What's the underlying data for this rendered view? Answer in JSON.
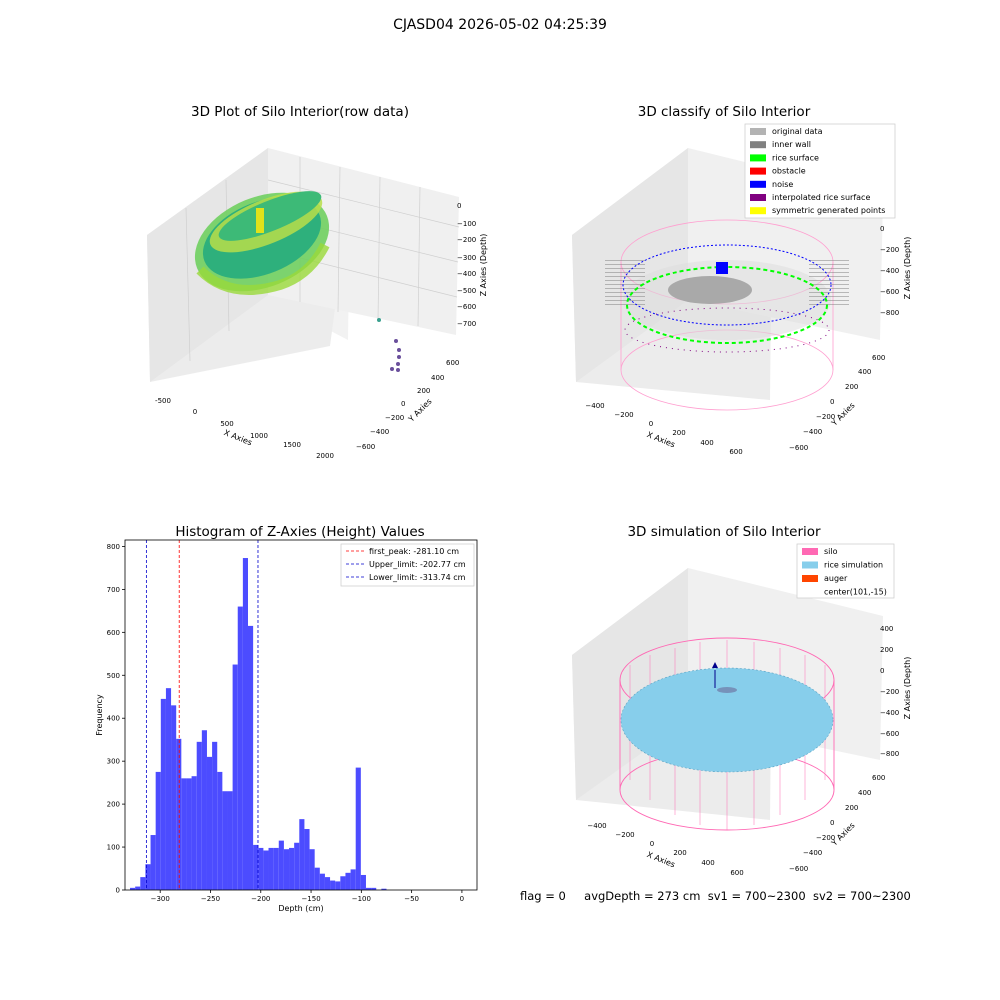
{
  "figure": {
    "suptitle": "CJASD04 2026-05-02 04:25:39",
    "footer": {
      "flag": "flag = 0",
      "avg_depth": "avgDepth = 273 cm",
      "sv1": "sv1 = 700~2300",
      "sv2": "sv2 = 700~2300"
    }
  },
  "colors": {
    "histogram_bar": "#4c4cff",
    "first_peak_line": "#ff0000",
    "limit_lines": "#0000cc",
    "original_data": "#b3b3b3",
    "inner_wall": "#808080",
    "rice_surface": "#00ff00",
    "obstacle": "#ff0000",
    "noise": "#0000ff",
    "interpolated_rice_surface": "#800080",
    "symmetric_generated_points": "#ffff00",
    "silo": "#ff69b4",
    "rice_simulation": "#87ceeb",
    "auger": "#ff4500"
  },
  "chart_data": [
    {
      "type": "scatter3d",
      "title": "3D Plot of Silo Interior(row data)",
      "xlabel": "X Axies",
      "ylabel": "Y Axies",
      "zlabel": "Z Axies (Depth)",
      "x_ticks": [
        "-500",
        "0",
        "500",
        "1000",
        "1500",
        "2000"
      ],
      "y_ticks": [
        "600",
        "400",
        "200",
        "0",
        "−200",
        "−400",
        "−600"
      ],
      "z_ticks": [
        "0",
        "−100",
        "−200",
        "−300",
        "−400",
        "−500",
        "−600",
        "−700"
      ],
      "grid": true,
      "colormap": "viridis"
    },
    {
      "type": "scatter3d",
      "title": "3D classify of Silo Interior",
      "xlabel": "X Axies",
      "ylabel": "Y Axies",
      "zlabel": "Z Axies (Depth)",
      "x_ticks": [
        "−400",
        "−200",
        "0",
        "200",
        "400",
        "600"
      ],
      "y_ticks": [
        "600",
        "400",
        "200",
        "0",
        "−200",
        "−400",
        "−600"
      ],
      "z_ticks": [
        "200",
        "0",
        "−200",
        "−400",
        "−600",
        "−800"
      ],
      "legend": [
        {
          "label": "original data",
          "color": "#b3b3b3"
        },
        {
          "label": "inner wall",
          "color": "#808080"
        },
        {
          "label": "rice surface",
          "color": "#00ff00"
        },
        {
          "label": "obstacle",
          "color": "#ff0000"
        },
        {
          "label": "noise",
          "color": "#0000ff"
        },
        {
          "label": "interpolated rice surface",
          "color": "#800080"
        },
        {
          "label": "symmetric generated points",
          "color": "#ffff00"
        }
      ],
      "legend_position": "top-right",
      "grid": true
    },
    {
      "type": "bar",
      "title": "Histogram of Z-Axies (Height) Values",
      "xlabel": "Depth (cm)",
      "ylabel": "Frequency",
      "xlim": [
        -335,
        15
      ],
      "ylim": [
        0,
        815
      ],
      "x_ticks": [
        -300,
        -250,
        -200,
        -150,
        -100,
        -50,
        0
      ],
      "y_ticks": [
        0,
        100,
        200,
        300,
        400,
        500,
        600,
        700,
        800
      ],
      "x_tick_labels": [
        "−300",
        "−250",
        "−200",
        "−150",
        "−100",
        "−50",
        "0"
      ],
      "y_tick_labels": [
        "0",
        "100",
        "200",
        "300",
        "400",
        "500",
        "600",
        "700",
        "800"
      ],
      "bin_start": -330,
      "bin_width": 5.1,
      "values": [
        5,
        8,
        30,
        60,
        128,
        275,
        445,
        470,
        430,
        352,
        260,
        260,
        265,
        345,
        372,
        310,
        345,
        275,
        230,
        230,
        525,
        660,
        773,
        615,
        105,
        98,
        92,
        98,
        98,
        115,
        95,
        98,
        110,
        165,
        142,
        95,
        52,
        38,
        30,
        22,
        20,
        32,
        40,
        48,
        285,
        35,
        5,
        5,
        0,
        3
      ],
      "vlines": [
        {
          "x": -281.1,
          "label": "first_peak: -281.10 cm",
          "color": "#ff0000"
        },
        {
          "x": -202.77,
          "label": "Upper_limit: -202.77 cm",
          "color": "#0000cc"
        },
        {
          "x": -313.74,
          "label": "Lower_limit: -313.74 cm",
          "color": "#0000cc"
        }
      ],
      "legend_position": "top-right",
      "grid": false
    },
    {
      "type": "surface3d",
      "title": "3D simulation of Silo Interior",
      "xlabel": "X Axies",
      "ylabel": "Y Axies",
      "zlabel": "Z Axies (Depth)",
      "x_ticks": [
        "−400",
        "−200",
        "0",
        "200",
        "400",
        "600"
      ],
      "y_ticks": [
        "600",
        "400",
        "200",
        "0",
        "−200",
        "−400",
        "−600"
      ],
      "z_ticks": [
        "400",
        "200",
        "0",
        "−200",
        "−400",
        "−600",
        "−800"
      ],
      "legend": [
        {
          "label": "silo",
          "color": "#ff69b4"
        },
        {
          "label": "rice simulation",
          "color": "#87ceeb"
        },
        {
          "label": "auger",
          "color": "#ff4500"
        },
        {
          "label": "center(101,-15)",
          "color": ""
        }
      ],
      "legend_position": "top-right",
      "grid": true
    }
  ]
}
